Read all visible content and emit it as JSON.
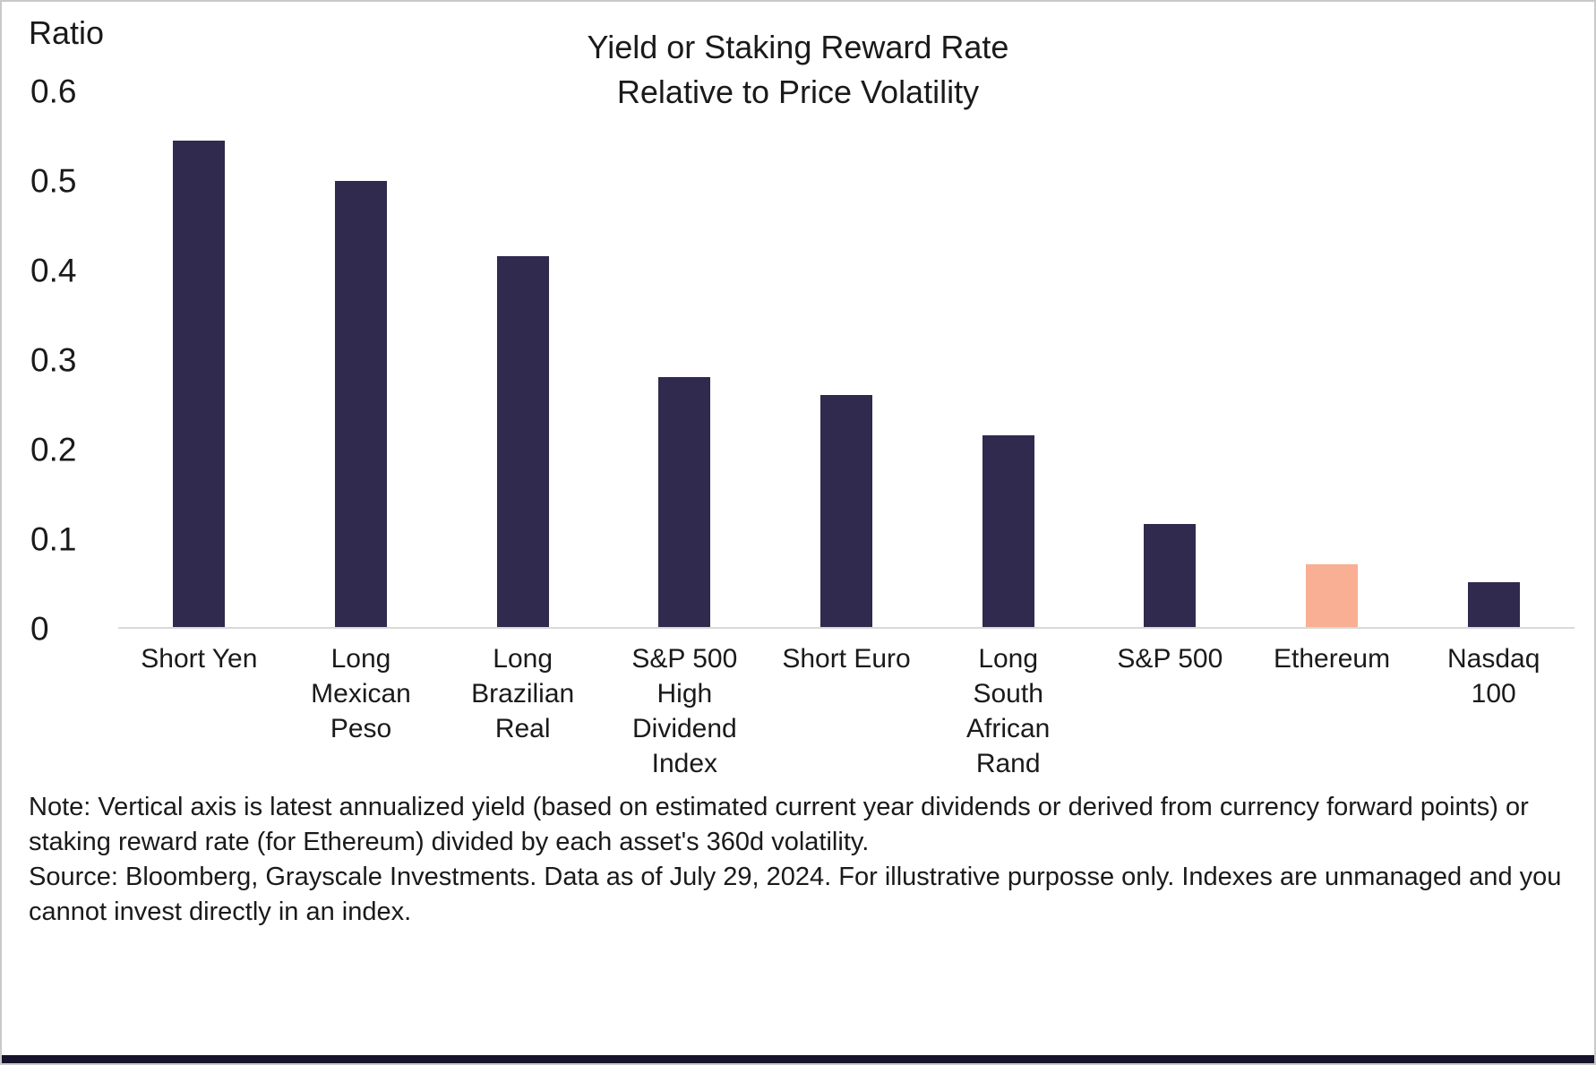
{
  "header": {
    "y_axis_title": "Ratio",
    "title_line1": "Yield or Staking Reward Rate",
    "title_line2": "Relative to Price Volatility"
  },
  "chart_data": {
    "type": "bar",
    "title": "Yield or Staking Reward Rate Relative to Price Volatility",
    "xlabel": "",
    "ylabel": "Ratio",
    "ylim": [
      0,
      0.6
    ],
    "yticks": [
      0,
      0.1,
      0.2,
      0.3,
      0.4,
      0.5,
      0.6
    ],
    "grid": false,
    "legend": "none",
    "categories": [
      "Short Yen",
      "Long Mexican Peso",
      "Long Brazilian Real",
      "S&P 500 High Dividend Index",
      "Short Euro",
      "Long South African Rand",
      "S&P 500",
      "Ethereum",
      "Nasdaq 100"
    ],
    "category_lines": [
      [
        "Short Yen"
      ],
      [
        "Long",
        "Mexican",
        "Peso"
      ],
      [
        "Long",
        "Brazilian",
        "Real"
      ],
      [
        "S&P 500",
        "High",
        "Dividend",
        "Index"
      ],
      [
        "Short Euro"
      ],
      [
        "Long",
        "South",
        "African",
        "Rand"
      ],
      [
        "S&P 500"
      ],
      [
        "Ethereum"
      ],
      [
        "Nasdaq",
        "100"
      ]
    ],
    "values": [
      0.545,
      0.5,
      0.415,
      0.28,
      0.26,
      0.215,
      0.115,
      0.07,
      0.05
    ],
    "bar_color": "#2f2a4e",
    "highlight_index": 7,
    "highlight_color": "#f9af94"
  },
  "note": {
    "line1": "Note: Vertical axis is latest annualized yield (based on estimated current year dividends or derived from currency forward points) or staking reward rate (for Ethereum) divided by each asset's 360d volatility.",
    "line2": "Source: Bloomberg, Grayscale Investments. Data as of July 29, 2024. For illustrative purposse only. Indexes are unmanaged and you cannot invest directly in an index."
  }
}
